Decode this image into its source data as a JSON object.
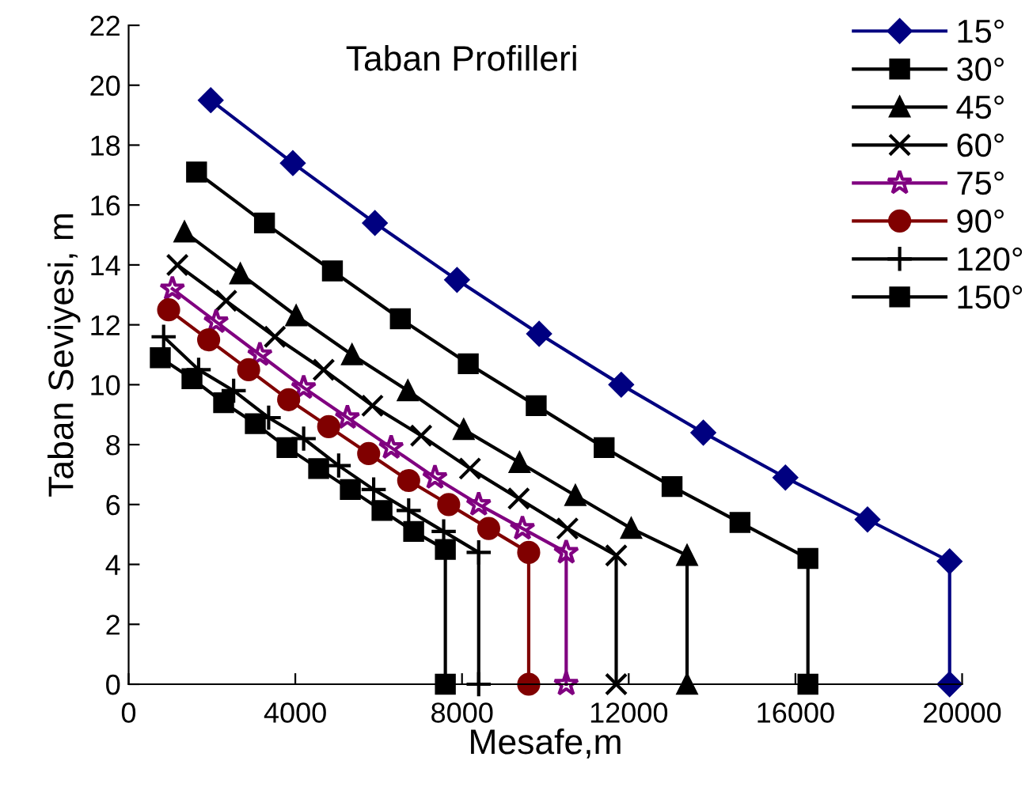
{
  "chart_data": {
    "type": "line",
    "title": "Taban Profilleri",
    "xlabel": "Mesafe,m",
    "ylabel": "Taban Seviyesi, m",
    "xlim": [
      0,
      20000
    ],
    "xticks": [
      0,
      4000,
      8000,
      12000,
      16000,
      20000
    ],
    "ylim": [
      0,
      22
    ],
    "yticks": [
      0,
      2,
      4,
      6,
      8,
      10,
      12,
      14,
      16,
      18,
      20,
      22
    ],
    "grid": false,
    "legend": "top right",
    "line_style": "solid",
    "series": [
      {
        "name": "15°",
        "color": "#000080",
        "marker": "diamond",
        "x": [
          1970,
          3940,
          5910,
          7880,
          9850,
          11820,
          13790,
          15760,
          17730,
          19700,
          19700
        ],
        "values": [
          19.5,
          17.4,
          15.4,
          13.5,
          11.7,
          10.0,
          8.4,
          6.9,
          5.5,
          4.1,
          0
        ]
      },
      {
        "name": "30°",
        "color": "#000000",
        "marker": "square",
        "x": [
          1630,
          3260,
          4890,
          6520,
          8150,
          9780,
          11410,
          13040,
          14670,
          16300,
          16300
        ],
        "values": [
          17.1,
          15.4,
          13.8,
          12.2,
          10.7,
          9.3,
          7.9,
          6.6,
          5.4,
          4.2,
          0
        ]
      },
      {
        "name": "45°",
        "color": "#000000",
        "marker": "triangle",
        "x": [
          1340,
          2680,
          4020,
          5360,
          6700,
          8040,
          9380,
          10720,
          12060,
          13400,
          13400
        ],
        "values": [
          15.1,
          13.7,
          12.3,
          11.0,
          9.8,
          8.5,
          7.4,
          6.3,
          5.2,
          4.3,
          0
        ]
      },
      {
        "name": "60°",
        "color": "#000000",
        "marker": "cross",
        "x": [
          1170,
          2340,
          3510,
          4680,
          5850,
          7020,
          8190,
          9360,
          10530,
          11700,
          11700
        ],
        "values": [
          14.0,
          12.8,
          11.6,
          10.5,
          9.3,
          8.3,
          7.2,
          6.2,
          5.2,
          4.3,
          0
        ]
      },
      {
        "name": "75°",
        "color": "#800080",
        "marker": "star",
        "x": [
          1050,
          2100,
          3150,
          4200,
          5250,
          6300,
          7350,
          8400,
          9450,
          10500,
          10500
        ],
        "values": [
          13.2,
          12.1,
          11.0,
          9.9,
          8.9,
          7.9,
          6.9,
          6.0,
          5.2,
          4.4,
          0
        ]
      },
      {
        "name": "90°",
        "color": "#800000",
        "marker": "circle",
        "x": [
          960,
          1920,
          2880,
          3840,
          4800,
          5760,
          6720,
          7680,
          8640,
          9600,
          9600
        ],
        "values": [
          12.5,
          11.5,
          10.5,
          9.5,
          8.6,
          7.7,
          6.8,
          6.0,
          5.2,
          4.4,
          0
        ]
      },
      {
        "name": "120°",
        "color": "#000000",
        "marker": "plus",
        "x": [
          840,
          1680,
          2520,
          3360,
          4200,
          5040,
          5880,
          6720,
          7560,
          8400,
          8400
        ],
        "values": [
          11.6,
          10.5,
          9.8,
          8.9,
          8.2,
          7.3,
          6.5,
          5.8,
          5.1,
          4.4,
          0
        ]
      },
      {
        "name": "150°",
        "color": "#000000",
        "marker": "square",
        "x": [
          760,
          1520,
          2280,
          3040,
          3800,
          4560,
          5320,
          6080,
          6840,
          7600,
          7600
        ],
        "values": [
          10.9,
          10.2,
          9.4,
          8.7,
          7.9,
          7.2,
          6.5,
          5.8,
          5.1,
          4.5,
          0
        ]
      }
    ]
  }
}
